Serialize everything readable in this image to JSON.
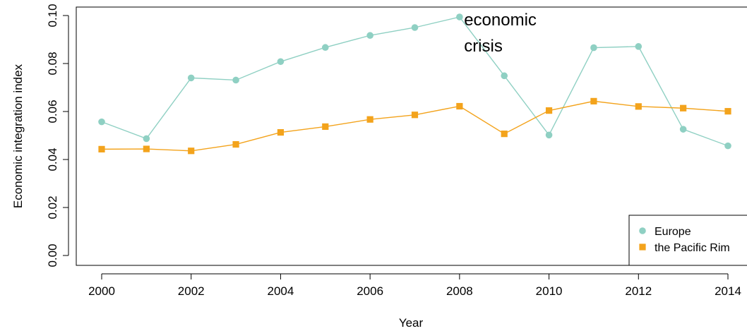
{
  "chart_data": {
    "type": "line",
    "xlabel": "Year",
    "ylabel": "Economic integration index",
    "xlim": [
      2000,
      2014
    ],
    "ylim": [
      0.0,
      0.1
    ],
    "x_ticks": [
      "2000",
      "2002",
      "2004",
      "2006",
      "2008",
      "2010",
      "2012",
      "2014"
    ],
    "y_ticks": [
      "0.00",
      "0.02",
      "0.04",
      "0.06",
      "0.08",
      "0.10"
    ],
    "x": [
      2000,
      2001,
      2002,
      2003,
      2004,
      2005,
      2006,
      2007,
      2008,
      2009,
      2010,
      2011,
      2012,
      2013,
      2014
    ],
    "series": [
      {
        "name": "Europe",
        "marker": "circle",
        "color": "#8fd0c3",
        "values": [
          0.0557,
          0.0487,
          0.074,
          0.0731,
          0.0808,
          0.0867,
          0.0917,
          0.095,
          0.0994,
          0.0749,
          0.0502,
          0.0866,
          0.0871,
          0.0526,
          0.0457
        ]
      },
      {
        "name": "the Pacific Rim",
        "marker": "square",
        "color": "#f3a31c",
        "values": [
          0.0443,
          0.0444,
          0.0436,
          0.0463,
          0.0513,
          0.0537,
          0.0567,
          0.0586,
          0.0622,
          0.0507,
          0.0604,
          0.0643,
          0.0621,
          0.0614,
          0.0601
        ]
      }
    ],
    "annotation": {
      "lines": [
        "economic",
        "crisis"
      ],
      "x": 2008.1,
      "y": 0.0885
    },
    "legend_position": "bottom-right",
    "grid": false
  }
}
